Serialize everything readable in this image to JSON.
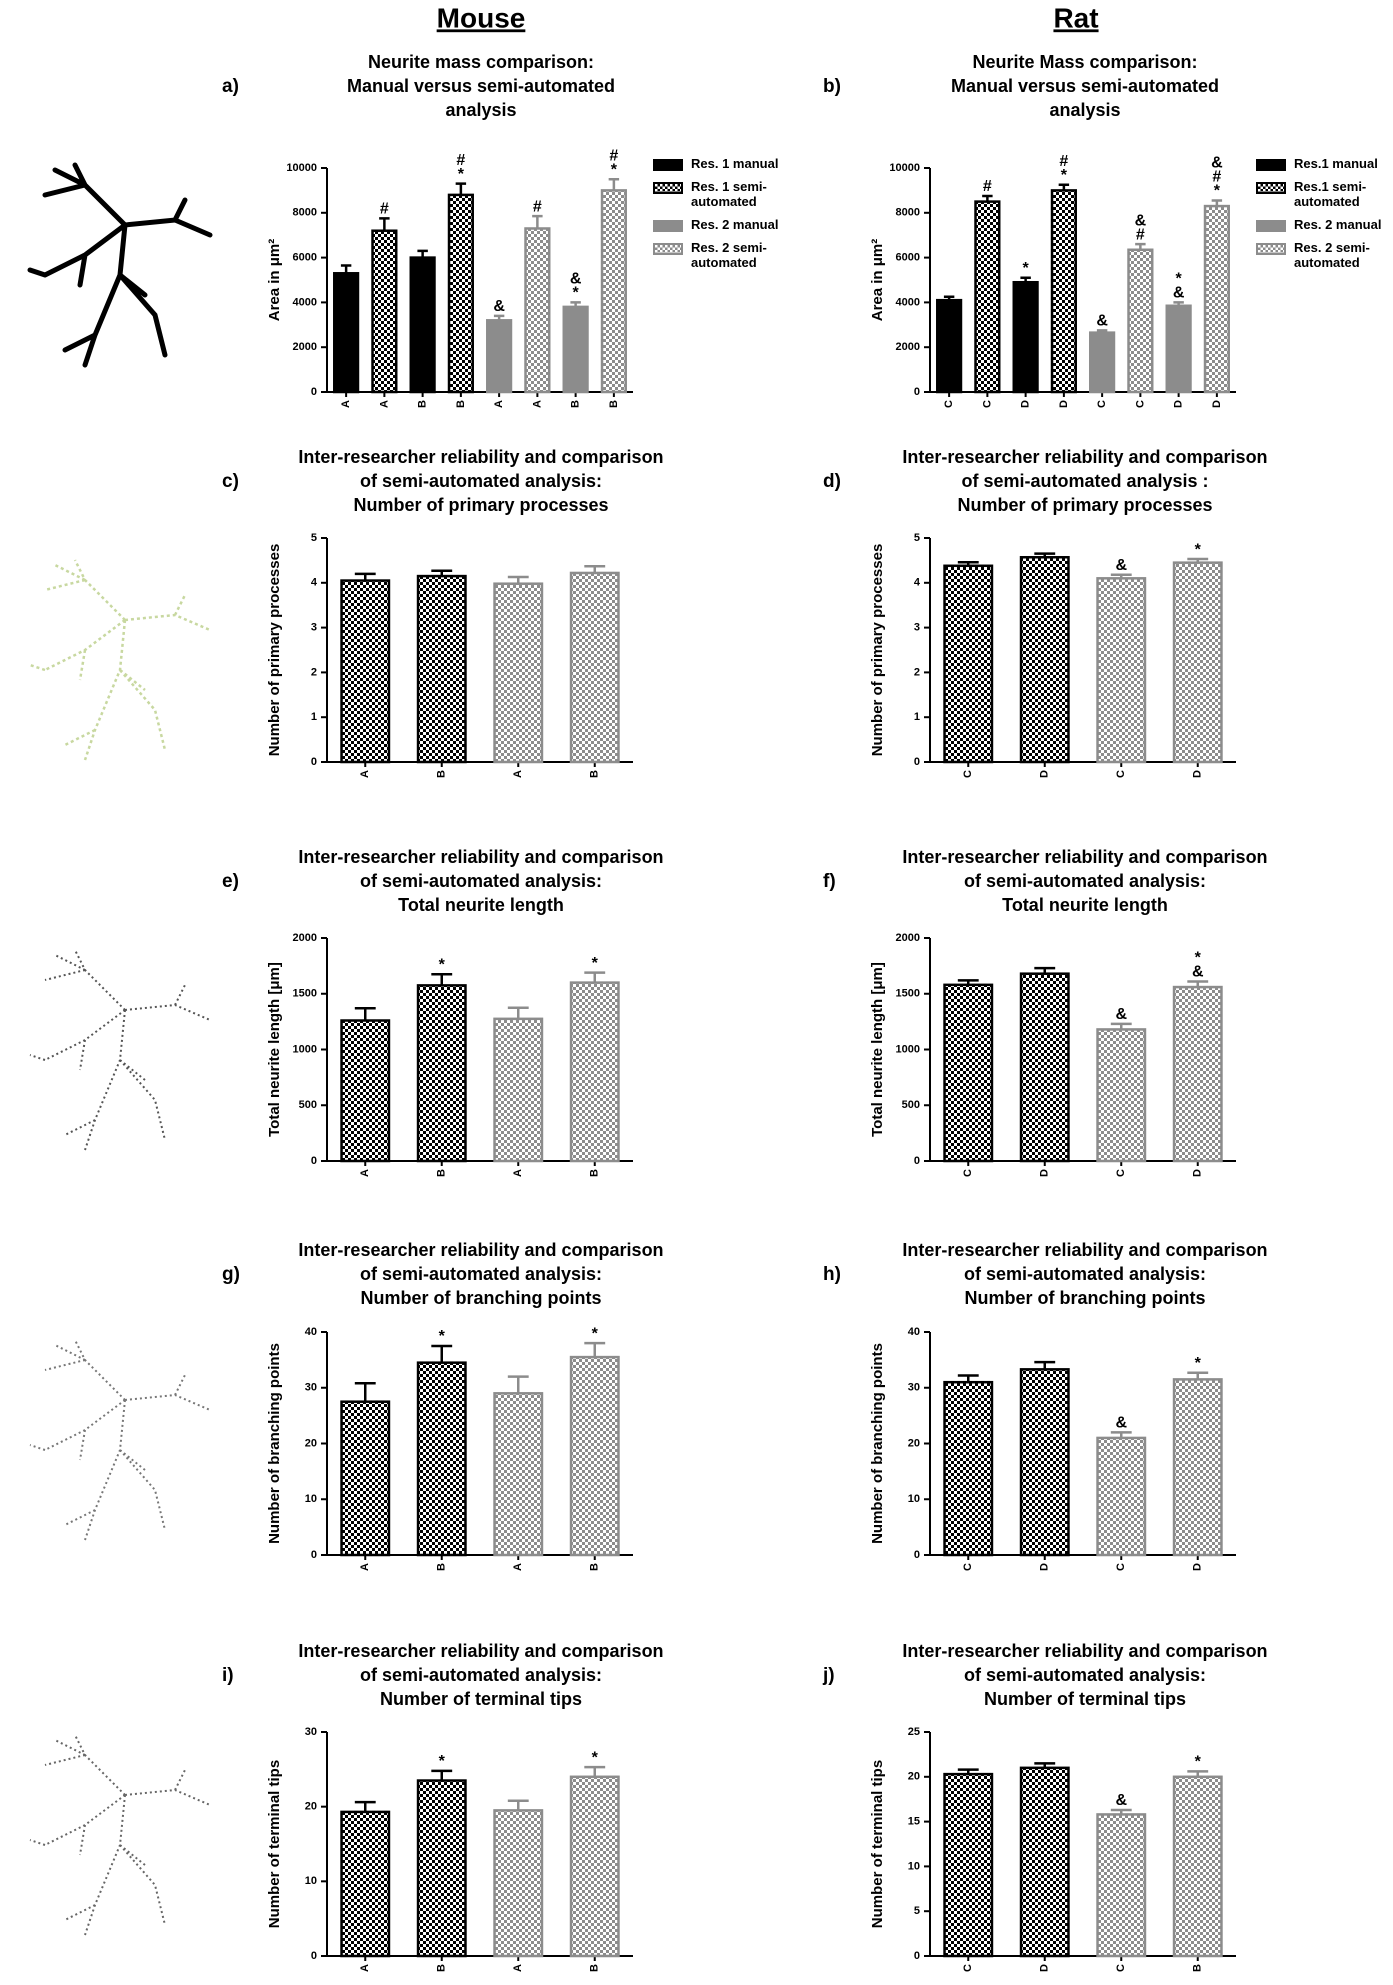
{
  "columns": [
    "Mouse",
    "Rat"
  ],
  "chart_data": [
    {
      "type": "bar",
      "label": "a)",
      "title": [
        "Neurite mass comparison:",
        "Manual versus semi-automated",
        "analysis"
      ],
      "y_label": "Area in μm²",
      "categories": [
        "A",
        "A",
        "B",
        "B",
        "A",
        "A",
        "B",
        "B"
      ],
      "ylim": [
        0,
        10000
      ],
      "yticks": [
        0,
        2000,
        4000,
        6000,
        8000,
        10000
      ],
      "legend": "right",
      "series": [
        {
          "name": "Res. 1 manual",
          "color": "#000000",
          "pattern": "solid",
          "values": [
            5300,
            null,
            6000,
            null,
            null,
            null,
            null,
            null
          ],
          "errors": [
            350,
            null,
            300,
            null,
            null,
            null,
            null,
            null
          ],
          "notes": [
            null,
            null,
            null,
            null,
            null,
            null,
            null,
            null
          ]
        },
        {
          "name": "Res. 1 semi-automated",
          "color": "#000000",
          "pattern": "checker",
          "values": [
            null,
            7200,
            null,
            8800,
            null,
            null,
            null,
            null
          ],
          "errors": [
            null,
            550,
            null,
            500,
            null,
            null,
            null,
            null
          ],
          "notes": [
            null,
            [
              "#"
            ],
            null,
            [
              "#",
              "*"
            ],
            null,
            null,
            null,
            null
          ]
        },
        {
          "name": "Res. 2 manual",
          "color": "#8c8c8c",
          "pattern": "solid",
          "values": [
            null,
            null,
            null,
            null,
            3200,
            null,
            3800,
            null
          ],
          "errors": [
            null,
            null,
            null,
            null,
            200,
            null,
            200,
            null
          ],
          "notes": [
            null,
            null,
            null,
            null,
            [
              "&"
            ],
            null,
            [
              "&",
              "*"
            ],
            null
          ]
        },
        {
          "name": "Res. 2 semi-automated",
          "color": "#8c8c8c",
          "pattern": "checker",
          "values": [
            null,
            null,
            null,
            null,
            null,
            7300,
            null,
            9000
          ],
          "errors": [
            null,
            null,
            null,
            null,
            null,
            550,
            null,
            500
          ],
          "notes": [
            null,
            null,
            null,
            null,
            null,
            [
              "#"
            ],
            null,
            [
              "#",
              "*"
            ]
          ]
        }
      ]
    },
    {
      "type": "bar",
      "label": "b)",
      "title": [
        "Neurite Mass comparison:",
        "Manual versus semi-automated",
        "analysis"
      ],
      "y_label": "Area in μm²",
      "categories": [
        "C",
        "C",
        "D",
        "D",
        "C",
        "C",
        "D",
        "D"
      ],
      "ylim": [
        0,
        10000
      ],
      "yticks": [
        0,
        2000,
        4000,
        6000,
        8000,
        10000
      ],
      "legend": "right",
      "series": [
        {
          "name": "Res.1 manual",
          "color": "#000000",
          "pattern": "solid",
          "values": [
            4100,
            null,
            4900,
            null,
            null,
            null,
            null,
            null
          ],
          "errors": [
            150,
            null,
            200,
            null,
            null,
            null,
            null,
            null
          ],
          "notes": [
            null,
            null,
            [
              "*"
            ],
            null,
            null,
            null,
            null,
            null
          ]
        },
        {
          "name": "Res.1 semi-automated",
          "color": "#000000",
          "pattern": "checker",
          "values": [
            null,
            8500,
            null,
            9000,
            null,
            null,
            null,
            null
          ],
          "errors": [
            null,
            250,
            null,
            250,
            null,
            null,
            null,
            null
          ],
          "notes": [
            null,
            [
              "#"
            ],
            null,
            [
              "#",
              "*"
            ],
            null,
            null,
            null,
            null
          ]
        },
        {
          "name": "Res. 2 manual",
          "color": "#8c8c8c",
          "pattern": "solid",
          "values": [
            null,
            null,
            null,
            null,
            2650,
            null,
            3850,
            null
          ],
          "errors": [
            null,
            null,
            null,
            null,
            100,
            null,
            150,
            null
          ],
          "notes": [
            null,
            null,
            null,
            null,
            [
              "&"
            ],
            null,
            [
              "*",
              "&"
            ],
            null
          ]
        },
        {
          "name": "Res. 2 semi-automated",
          "color": "#8c8c8c",
          "pattern": "checker",
          "values": [
            null,
            null,
            null,
            null,
            null,
            6350,
            null,
            8300
          ],
          "errors": [
            null,
            null,
            null,
            null,
            null,
            250,
            null,
            250
          ],
          "notes": [
            null,
            null,
            null,
            null,
            null,
            [
              "&",
              "#"
            ],
            null,
            [
              "&",
              "#",
              "*"
            ]
          ]
        }
      ]
    },
    {
      "type": "bar",
      "label": "c)",
      "title": [
        "Inter-researcher reliability and comparison",
        "of semi-automated analysis:",
        "Number of primary processes"
      ],
      "y_label": "Number of primary processes",
      "categories": [
        "A",
        "B",
        "A",
        "B"
      ],
      "ylim": [
        0,
        5
      ],
      "yticks": [
        0,
        1,
        2,
        3,
        4,
        5
      ],
      "series": [
        {
          "color": "#000000",
          "pattern": "checker",
          "values": [
            4.05,
            4.15,
            null,
            null
          ],
          "errors": [
            0.15,
            0.12,
            null,
            null
          ],
          "notes": [
            null,
            null,
            null,
            null
          ]
        },
        {
          "color": "#8c8c8c",
          "pattern": "checker",
          "values": [
            null,
            null,
            3.98,
            4.22
          ],
          "errors": [
            null,
            null,
            0.15,
            0.15
          ],
          "notes": [
            null,
            null,
            null,
            null
          ]
        }
      ]
    },
    {
      "type": "bar",
      "label": "d)",
      "title": [
        "Inter-researcher reliability and comparison",
        "of semi-automated analysis :",
        "Number of primary processes"
      ],
      "y_label": "Number of primary processes",
      "categories": [
        "C",
        "D",
        "C",
        "D"
      ],
      "ylim": [
        0,
        5
      ],
      "yticks": [
        0,
        1,
        2,
        3,
        4,
        5
      ],
      "series": [
        {
          "color": "#000000",
          "pattern": "checker",
          "values": [
            4.38,
            4.57,
            null,
            null
          ],
          "errors": [
            0.08,
            0.08,
            null,
            null
          ],
          "notes": [
            null,
            null,
            null,
            null
          ]
        },
        {
          "color": "#8c8c8c",
          "pattern": "checker",
          "values": [
            null,
            null,
            4.1,
            4.45
          ],
          "errors": [
            null,
            null,
            0.08,
            0.08
          ],
          "notes": [
            null,
            null,
            [
              "&"
            ],
            [
              "*"
            ]
          ]
        }
      ]
    },
    {
      "type": "bar",
      "label": "e)",
      "title": [
        "Inter-researcher reliability and comparison",
        "of semi-automated analysis:",
        "Total neurite length"
      ],
      "y_label": "Total neurite length [μm]",
      "categories": [
        "A",
        "B",
        "A",
        "B"
      ],
      "ylim": [
        0,
        2000
      ],
      "yticks": [
        0,
        500,
        1000,
        1500,
        2000
      ],
      "series": [
        {
          "color": "#000000",
          "pattern": "checker",
          "values": [
            1260,
            1575,
            null,
            null
          ],
          "errors": [
            110,
            100,
            null,
            null
          ],
          "notes": [
            null,
            [
              "*"
            ],
            null,
            null
          ]
        },
        {
          "color": "#8c8c8c",
          "pattern": "checker",
          "values": [
            null,
            null,
            1275,
            1600
          ],
          "errors": [
            null,
            null,
            100,
            90
          ],
          "notes": [
            null,
            null,
            null,
            [
              "*"
            ]
          ]
        }
      ]
    },
    {
      "type": "bar",
      "label": "f)",
      "title": [
        "Inter-researcher reliability and comparison",
        "of semi-automated analysis:",
        "Total neurite length"
      ],
      "y_label": "Total neurite length [μm]",
      "categories": [
        "C",
        "D",
        "C",
        "D"
      ],
      "ylim": [
        0,
        2000
      ],
      "yticks": [
        0,
        500,
        1000,
        1500,
        2000
      ],
      "series": [
        {
          "color": "#000000",
          "pattern": "checker",
          "values": [
            1580,
            1680,
            null,
            null
          ],
          "errors": [
            40,
            50,
            null,
            null
          ],
          "notes": [
            null,
            null,
            null,
            null
          ]
        },
        {
          "color": "#8c8c8c",
          "pattern": "checker",
          "values": [
            null,
            null,
            1180,
            1560
          ],
          "errors": [
            null,
            null,
            50,
            50
          ],
          "notes": [
            null,
            null,
            [
              "&"
            ],
            [
              "*",
              "&"
            ]
          ]
        }
      ]
    },
    {
      "type": "bar",
      "label": "g)",
      "title": [
        "Inter-researcher reliability and comparison",
        "of semi-automated analysis:",
        "Number of branching points"
      ],
      "y_label": "Number of branching points",
      "categories": [
        "A",
        "B",
        "A",
        "B"
      ],
      "ylim": [
        0,
        40
      ],
      "yticks": [
        0,
        10,
        20,
        30,
        40
      ],
      "series": [
        {
          "color": "#000000",
          "pattern": "checker",
          "values": [
            27.5,
            34.5,
            null,
            null
          ],
          "errors": [
            3.3,
            3,
            null,
            null
          ],
          "notes": [
            null,
            [
              "*"
            ],
            null,
            null
          ]
        },
        {
          "color": "#8c8c8c",
          "pattern": "checker",
          "values": [
            null,
            null,
            29,
            35.5
          ],
          "errors": [
            null,
            null,
            3,
            2.5
          ],
          "notes": [
            null,
            null,
            null,
            [
              "*"
            ]
          ]
        }
      ]
    },
    {
      "type": "bar",
      "label": "h)",
      "title": [
        "Inter-researcher reliability and comparison",
        "of semi-automated analysis:",
        "Number of branching points"
      ],
      "y_label": "Number of branching points",
      "categories": [
        "C",
        "D",
        "C",
        "D"
      ],
      "ylim": [
        0,
        40
      ],
      "yticks": [
        0,
        10,
        20,
        30,
        40
      ],
      "series": [
        {
          "color": "#000000",
          "pattern": "checker",
          "values": [
            31,
            33.3,
            null,
            null
          ],
          "errors": [
            1.2,
            1.3,
            null,
            null
          ],
          "notes": [
            null,
            null,
            null,
            null
          ]
        },
        {
          "color": "#8c8c8c",
          "pattern": "checker",
          "values": [
            null,
            null,
            21,
            31.5
          ],
          "errors": [
            null,
            null,
            1,
            1.2
          ],
          "notes": [
            null,
            null,
            [
              "&"
            ],
            [
              "*"
            ]
          ]
        }
      ]
    },
    {
      "type": "bar",
      "label": "i)",
      "title": [
        "Inter-researcher reliability and comparison",
        "of semi-automated analysis:",
        "Number of terminal tips"
      ],
      "y_label": "Number of terminal tips",
      "categories": [
        "A",
        "B",
        "A",
        "B"
      ],
      "ylim": [
        0,
        30
      ],
      "yticks": [
        0,
        10,
        20,
        30
      ],
      "series": [
        {
          "color": "#000000",
          "pattern": "checker",
          "values": [
            19.3,
            23.5,
            null,
            null
          ],
          "errors": [
            1.3,
            1.3,
            null,
            null
          ],
          "notes": [
            null,
            [
              "*"
            ],
            null,
            null
          ]
        },
        {
          "color": "#8c8c8c",
          "pattern": "checker",
          "values": [
            null,
            null,
            19.5,
            24
          ],
          "errors": [
            null,
            null,
            1.3,
            1.3
          ],
          "notes": [
            null,
            null,
            null,
            [
              "*"
            ]
          ]
        }
      ]
    },
    {
      "type": "bar",
      "label": "j)",
      "title": [
        "Inter-researcher reliability and comparison",
        "of semi-automated analysis:",
        "Number of terminal tips"
      ],
      "y_label": "Number of terminal tips",
      "categories": [
        "C",
        "D",
        "C",
        "B"
      ],
      "ylim": [
        0,
        25
      ],
      "yticks": [
        0,
        5,
        10,
        15,
        20,
        25
      ],
      "series": [
        {
          "color": "#000000",
          "pattern": "checker",
          "values": [
            20.3,
            21,
            null,
            null
          ],
          "errors": [
            0.5,
            0.5,
            null,
            null
          ],
          "notes": [
            null,
            null,
            null,
            null
          ]
        },
        {
          "color": "#8c8c8c",
          "pattern": "checker",
          "values": [
            null,
            null,
            15.8,
            20
          ],
          "errors": [
            null,
            null,
            0.5,
            0.6
          ],
          "notes": [
            null,
            null,
            [
              "&"
            ],
            [
              "*"
            ]
          ]
        }
      ]
    }
  ]
}
